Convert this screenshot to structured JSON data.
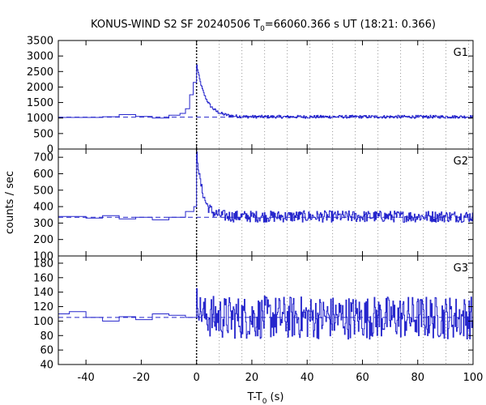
{
  "colors": {
    "series": "#2626cc",
    "background_fit": "#2626cc",
    "frame": "#000000",
    "grid": "#999999"
  },
  "chart_data": {
    "type": "line",
    "title": {
      "main": "KONUS-WIND S2 SF 20240506 T",
      "subscript": "0",
      "rest": "=66060.366 s UT (18:21: 0.366)"
    },
    "xlabel": {
      "main": "T-T",
      "subscript": "0",
      "rest": " (s)"
    },
    "ylabel": "counts / sec",
    "xlim": [
      -50,
      100
    ],
    "xticks": [
      -40,
      -20,
      0,
      20,
      40,
      60,
      80,
      100
    ],
    "xtick_labels": [
      "-40",
      "-20",
      "0",
      "20",
      "40",
      "60",
      "80",
      "100"
    ],
    "marker_lines_x": [
      0,
      8.2,
      16.4,
      24.6,
      32.8,
      41.0,
      49.2,
      57.4,
      65.6,
      73.8,
      82.0,
      90.2,
      98.4
    ],
    "panels": [
      {
        "name": "G1",
        "ylim": [
          0,
          3500
        ],
        "yticks": [
          0,
          500,
          1000,
          1500,
          2000,
          2500,
          3000,
          3500
        ],
        "ytick_labels": [
          "0",
          "500",
          "1000",
          "1500",
          "2000",
          "2500",
          "3000",
          "3500"
        ],
        "background_level": 1030,
        "pre_steps": [
          {
            "x0": -50,
            "x1": -34,
            "y": 1020
          },
          {
            "x0": -34,
            "x1": -28,
            "y": 1040
          },
          {
            "x0": -28,
            "x1": -22,
            "y": 1110
          },
          {
            "x0": -22,
            "x1": -16,
            "y": 1050
          },
          {
            "x0": -16,
            "x1": -10,
            "y": 1000
          },
          {
            "x0": -10,
            "x1": -6,
            "y": 1090
          },
          {
            "x0": -6,
            "x1": -4,
            "y": 1150
          },
          {
            "x0": -4,
            "x1": -2.5,
            "y": 1300
          },
          {
            "x0": -2.5,
            "x1": -1.2,
            "y": 1750
          },
          {
            "x0": -1.2,
            "x1": 0,
            "y": 2150
          }
        ],
        "burst_peak": 2700,
        "burst_decay_s": 3.2,
        "post_level": 1040,
        "noise_amplitude": 50
      },
      {
        "name": "G2",
        "ylim": [
          100,
          750
        ],
        "yticks": [
          100,
          200,
          300,
          400,
          500,
          600,
          700
        ],
        "ytick_labels": [
          "100",
          "200",
          "300",
          "400",
          "500",
          "600",
          "700"
        ],
        "background_level": 335,
        "pre_steps": [
          {
            "x0": -50,
            "x1": -40,
            "y": 340
          },
          {
            "x0": -40,
            "x1": -34,
            "y": 330
          },
          {
            "x0": -34,
            "x1": -28,
            "y": 345
          },
          {
            "x0": -28,
            "x1": -22,
            "y": 325
          },
          {
            "x0": -22,
            "x1": -16,
            "y": 335
          },
          {
            "x0": -16,
            "x1": -10,
            "y": 320
          },
          {
            "x0": -10,
            "x1": -4,
            "y": 335
          },
          {
            "x0": -4,
            "x1": -1,
            "y": 370
          },
          {
            "x0": -1,
            "x1": 0,
            "y": 400
          }
        ],
        "burst_peak": 720,
        "burst_decay_s": 2.2,
        "post_level": 340,
        "noise_amplitude": 35
      },
      {
        "name": "G3",
        "ylim": [
          40,
          190
        ],
        "yticks": [
          40,
          60,
          80,
          100,
          120,
          140,
          160,
          180
        ],
        "ytick_labels": [
          "40",
          "60",
          "80",
          "100",
          "120",
          "140",
          "160",
          "180"
        ],
        "background_level": 105,
        "pre_steps": [
          {
            "x0": -50,
            "x1": -46,
            "y": 110
          },
          {
            "x0": -46,
            "x1": -40,
            "y": 113
          },
          {
            "x0": -40,
            "x1": -34,
            "y": 105
          },
          {
            "x0": -34,
            "x1": -28,
            "y": 100
          },
          {
            "x0": -28,
            "x1": -22,
            "y": 106
          },
          {
            "x0": -22,
            "x1": -16,
            "y": 102
          },
          {
            "x0": -16,
            "x1": -10,
            "y": 110
          },
          {
            "x0": -10,
            "x1": -4,
            "y": 108
          },
          {
            "x0": -4,
            "x1": 0,
            "y": 105
          }
        ],
        "burst_peak": 130,
        "burst_decay_s": 1.5,
        "post_level": 105,
        "noise_amplitude": 30
      }
    ]
  }
}
